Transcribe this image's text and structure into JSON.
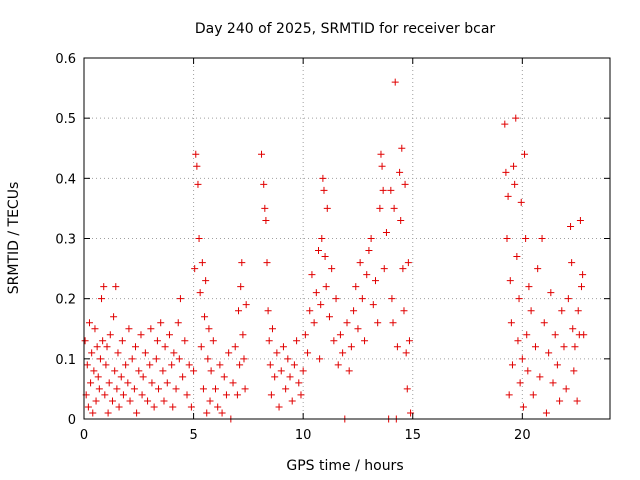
{
  "chart_data": {
    "type": "scatter",
    "title": "Day 240 of 2025, SRMTID for receiver bcar",
    "xlabel": "GPS time / hours",
    "ylabel": "SRMTID / TECUs",
    "xlim": [
      0,
      24
    ],
    "ylim": [
      0,
      0.6
    ],
    "x_ticks": [
      0,
      5,
      10,
      15,
      20
    ],
    "x_tick_labels": [
      "0",
      "5",
      "10",
      "15",
      "20"
    ],
    "y_ticks": [
      0,
      0.1,
      0.2,
      0.3,
      0.4,
      0.5,
      0.6
    ],
    "y_tick_labels": [
      "0",
      "0.1",
      "0.2",
      "0.3",
      "0.4",
      "0.5",
      "0.6"
    ],
    "grid": true,
    "marker": "+",
    "color": "#e00000",
    "series": [
      {
        "name": "SRMTID",
        "points": [
          [
            0.05,
            0.13
          ],
          [
            0.1,
            0.04
          ],
          [
            0.15,
            0.09
          ],
          [
            0.2,
            0.02
          ],
          [
            0.25,
            0.16
          ],
          [
            0.3,
            0.06
          ],
          [
            0.35,
            0.11
          ],
          [
            0.4,
            0.01
          ],
          [
            0.45,
            0.08
          ],
          [
            0.5,
            0.15
          ],
          [
            0.55,
            0.03
          ],
          [
            0.6,
            0.12
          ],
          [
            0.65,
            0.07
          ],
          [
            0.7,
            0.05
          ],
          [
            0.75,
            0.1
          ],
          [
            0.8,
            0.2
          ],
          [
            0.85,
            0.13
          ],
          [
            0.9,
            0.22
          ],
          [
            0.95,
            0.04
          ],
          [
            1.0,
            0.09
          ],
          [
            1.05,
            0.12
          ],
          [
            1.1,
            0.01
          ],
          [
            1.15,
            0.06
          ],
          [
            1.2,
            0.14
          ],
          [
            1.3,
            0.03
          ],
          [
            1.35,
            0.17
          ],
          [
            1.4,
            0.08
          ],
          [
            1.45,
            0.22
          ],
          [
            1.5,
            0.05
          ],
          [
            1.55,
            0.11
          ],
          [
            1.6,
            0.02
          ],
          [
            1.7,
            0.07
          ],
          [
            1.75,
            0.13
          ],
          [
            1.8,
            0.04
          ],
          [
            1.9,
            0.09
          ],
          [
            2.0,
            0.06
          ],
          [
            2.05,
            0.15
          ],
          [
            2.1,
            0.03
          ],
          [
            2.2,
            0.1
          ],
          [
            2.3,
            0.05
          ],
          [
            2.35,
            0.12
          ],
          [
            2.4,
            0.01
          ],
          [
            2.5,
            0.08
          ],
          [
            2.6,
            0.14
          ],
          [
            2.65,
            0.04
          ],
          [
            2.7,
            0.07
          ],
          [
            2.8,
            0.11
          ],
          [
            2.9,
            0.03
          ],
          [
            3.0,
            0.09
          ],
          [
            3.05,
            0.15
          ],
          [
            3.1,
            0.06
          ],
          [
            3.2,
            0.02
          ],
          [
            3.3,
            0.1
          ],
          [
            3.35,
            0.13
          ],
          [
            3.4,
            0.05
          ],
          [
            3.5,
            0.16
          ],
          [
            3.6,
            0.08
          ],
          [
            3.65,
            0.03
          ],
          [
            3.7,
            0.12
          ],
          [
            3.8,
            0.06
          ],
          [
            3.9,
            0.14
          ],
          [
            4.0,
            0.09
          ],
          [
            4.05,
            0.02
          ],
          [
            4.1,
            0.11
          ],
          [
            4.2,
            0.05
          ],
          [
            4.3,
            0.16
          ],
          [
            4.35,
            0.1
          ],
          [
            4.4,
            0.2
          ],
          [
            4.5,
            0.07
          ],
          [
            4.6,
            0.13
          ],
          [
            4.7,
            0.04
          ],
          [
            4.8,
            0.09
          ],
          [
            4.9,
            0.02
          ],
          [
            5.0,
            0.08
          ],
          [
            5.05,
            0.25
          ],
          [
            5.1,
            0.44
          ],
          [
            5.15,
            0.42
          ],
          [
            5.2,
            0.39
          ],
          [
            5.25,
            0.3
          ],
          [
            5.3,
            0.21
          ],
          [
            5.35,
            0.12
          ],
          [
            5.4,
            0.26
          ],
          [
            5.45,
            0.05
          ],
          [
            5.5,
            0.17
          ],
          [
            5.55,
            0.23
          ],
          [
            5.6,
            0.01
          ],
          [
            5.65,
            0.1
          ],
          [
            5.7,
            0.15
          ],
          [
            5.75,
            0.03
          ],
          [
            5.8,
            0.08
          ],
          [
            5.9,
            0.13
          ],
          [
            6.0,
            0.05
          ],
          [
            6.1,
            0.02
          ],
          [
            6.2,
            0.09
          ],
          [
            6.3,
            0.01
          ],
          [
            6.4,
            0.07
          ],
          [
            6.5,
            0.04
          ],
          [
            6.6,
            0.11
          ],
          [
            6.7,
            0.0
          ],
          [
            6.8,
            0.06
          ],
          [
            6.9,
            0.12
          ],
          [
            7.0,
            0.04
          ],
          [
            7.05,
            0.18
          ],
          [
            7.1,
            0.09
          ],
          [
            7.15,
            0.22
          ],
          [
            7.2,
            0.26
          ],
          [
            7.25,
            0.14
          ],
          [
            7.3,
            0.1
          ],
          [
            7.35,
            0.05
          ],
          [
            7.4,
            0.19
          ],
          [
            8.1,
            0.44
          ],
          [
            8.2,
            0.39
          ],
          [
            8.25,
            0.35
          ],
          [
            8.3,
            0.33
          ],
          [
            8.35,
            0.26
          ],
          [
            8.4,
            0.18
          ],
          [
            8.45,
            0.13
          ],
          [
            8.5,
            0.09
          ],
          [
            8.55,
            0.04
          ],
          [
            8.6,
            0.15
          ],
          [
            8.7,
            0.07
          ],
          [
            8.8,
            0.11
          ],
          [
            8.9,
            0.02
          ],
          [
            9.0,
            0.08
          ],
          [
            9.1,
            0.12
          ],
          [
            9.2,
            0.05
          ],
          [
            9.3,
            0.1
          ],
          [
            9.4,
            0.07
          ],
          [
            9.5,
            0.03
          ],
          [
            9.6,
            0.09
          ],
          [
            9.7,
            0.13
          ],
          [
            9.8,
            0.06
          ],
          [
            9.9,
            0.04
          ],
          [
            10.0,
            0.08
          ],
          [
            10.1,
            0.14
          ],
          [
            10.2,
            0.11
          ],
          [
            10.3,
            0.18
          ],
          [
            10.4,
            0.24
          ],
          [
            10.5,
            0.16
          ],
          [
            10.6,
            0.21
          ],
          [
            10.7,
            0.28
          ],
          [
            10.75,
            0.1
          ],
          [
            10.8,
            0.19
          ],
          [
            10.85,
            0.3
          ],
          [
            10.9,
            0.4
          ],
          [
            10.95,
            0.38
          ],
          [
            11.0,
            0.27
          ],
          [
            11.05,
            0.22
          ],
          [
            11.1,
            0.35
          ],
          [
            11.2,
            0.17
          ],
          [
            11.3,
            0.25
          ],
          [
            11.4,
            0.13
          ],
          [
            11.5,
            0.2
          ],
          [
            11.6,
            0.09
          ],
          [
            11.7,
            0.14
          ],
          [
            11.8,
            0.11
          ],
          [
            11.9,
            0.0
          ],
          [
            12.0,
            0.16
          ],
          [
            12.1,
            0.08
          ],
          [
            12.2,
            0.12
          ],
          [
            12.3,
            0.18
          ],
          [
            12.4,
            0.22
          ],
          [
            12.5,
            0.15
          ],
          [
            12.6,
            0.26
          ],
          [
            12.7,
            0.2
          ],
          [
            12.8,
            0.13
          ],
          [
            12.9,
            0.24
          ],
          [
            13.0,
            0.28
          ],
          [
            13.1,
            0.3
          ],
          [
            13.2,
            0.19
          ],
          [
            13.3,
            0.23
          ],
          [
            13.4,
            0.16
          ],
          [
            13.5,
            0.35
          ],
          [
            13.55,
            0.44
          ],
          [
            13.6,
            0.42
          ],
          [
            13.65,
            0.38
          ],
          [
            13.7,
            0.25
          ],
          [
            13.8,
            0.31
          ],
          [
            13.9,
            0.0
          ],
          [
            14.0,
            0.38
          ],
          [
            14.05,
            0.2
          ],
          [
            14.1,
            0.16
          ],
          [
            14.15,
            0.35
          ],
          [
            14.2,
            0.56
          ],
          [
            14.25,
            0.0
          ],
          [
            14.3,
            0.12
          ],
          [
            14.4,
            0.41
          ],
          [
            14.45,
            0.33
          ],
          [
            14.5,
            0.45
          ],
          [
            14.55,
            0.25
          ],
          [
            14.6,
            0.18
          ],
          [
            14.65,
            0.39
          ],
          [
            14.7,
            0.11
          ],
          [
            14.75,
            0.05
          ],
          [
            14.8,
            0.26
          ],
          [
            14.85,
            0.13
          ],
          [
            14.9,
            0.01
          ],
          [
            19.2,
            0.49
          ],
          [
            19.25,
            0.41
          ],
          [
            19.3,
            0.3
          ],
          [
            19.35,
            0.37
          ],
          [
            19.4,
            0.04
          ],
          [
            19.45,
            0.23
          ],
          [
            19.5,
            0.16
          ],
          [
            19.55,
            0.09
          ],
          [
            19.6,
            0.42
          ],
          [
            19.65,
            0.39
          ],
          [
            19.7,
            0.5
          ],
          [
            19.75,
            0.27
          ],
          [
            19.8,
            0.13
          ],
          [
            19.85,
            0.2
          ],
          [
            19.9,
            0.06
          ],
          [
            19.95,
            0.36
          ],
          [
            20.0,
            0.1
          ],
          [
            20.05,
            0.02
          ],
          [
            20.1,
            0.44
          ],
          [
            20.15,
            0.3
          ],
          [
            20.2,
            0.14
          ],
          [
            20.25,
            0.08
          ],
          [
            20.3,
            0.22
          ],
          [
            20.4,
            0.18
          ],
          [
            20.5,
            0.04
          ],
          [
            20.6,
            0.12
          ],
          [
            20.7,
            0.25
          ],
          [
            20.8,
            0.07
          ],
          [
            20.9,
            0.3
          ],
          [
            21.0,
            0.16
          ],
          [
            21.1,
            0.01
          ],
          [
            21.2,
            0.11
          ],
          [
            21.3,
            0.21
          ],
          [
            21.4,
            0.06
          ],
          [
            21.5,
            0.14
          ],
          [
            21.6,
            0.09
          ],
          [
            21.7,
            0.03
          ],
          [
            21.8,
            0.18
          ],
          [
            21.9,
            0.12
          ],
          [
            22.0,
            0.05
          ],
          [
            22.1,
            0.2
          ],
          [
            22.2,
            0.32
          ],
          [
            22.25,
            0.26
          ],
          [
            22.3,
            0.15
          ],
          [
            22.35,
            0.08
          ],
          [
            22.4,
            0.12
          ],
          [
            22.5,
            0.03
          ],
          [
            22.55,
            0.18
          ],
          [
            22.6,
            0.14
          ],
          [
            22.65,
            0.33
          ],
          [
            22.7,
            0.22
          ],
          [
            22.75,
            0.24
          ],
          [
            22.8,
            0.14
          ]
        ]
      }
    ]
  }
}
